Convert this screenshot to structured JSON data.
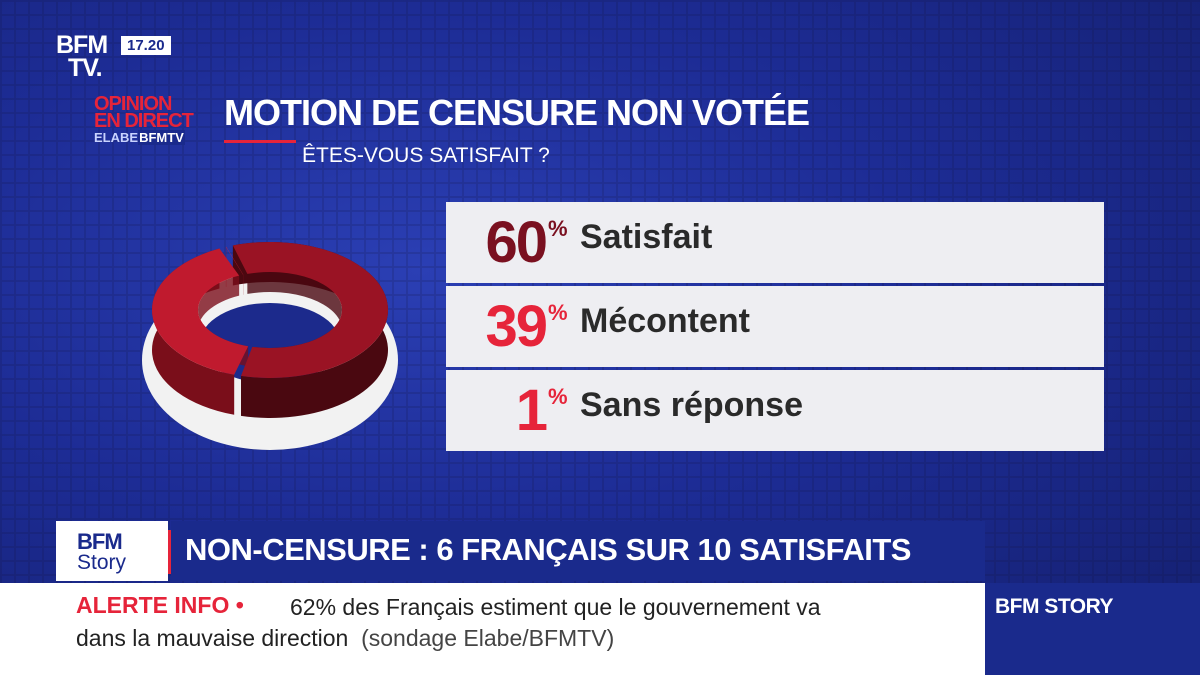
{
  "channel": {
    "logo_line1": "BFM",
    "logo_line2": "TV.",
    "time": "17.20"
  },
  "brand": {
    "opinion_line1": "OPINION",
    "opinion_line2": "EN DIRECT",
    "partner_a": "ELABE",
    "partner_b": "BFMTV"
  },
  "header": {
    "title": "MOTION DE CENSURE NON VOTÉE",
    "subtitle": "ÊTES-VOUS SATISFAIT ?"
  },
  "colors": {
    "satisfait": "#7a1020",
    "mecontent": "#e6243a",
    "sans_reponse": "#e6243a",
    "brand_blue": "#1a2a8c",
    "ring_base": "#f2f2f2"
  },
  "chart_data": {
    "type": "pie",
    "title": "MOTION DE CENSURE NON VOTÉE",
    "subtitle": "ÊTES-VOUS SATISFAIT ?",
    "unit": "%",
    "slices": [
      {
        "label": "Satisfait",
        "value": 60,
        "value_text": "60"
      },
      {
        "label": "Mécontent",
        "value": 39,
        "value_text": "39"
      },
      {
        "label": "Sans réponse",
        "value": 1,
        "value_text": "1"
      }
    ]
  },
  "banner": {
    "logo_line1": "BFM",
    "logo_line2": "Story",
    "headline": "NON-CENSURE : 6 FRANÇAIS SUR 10 SATISFAITS"
  },
  "ticker": {
    "alert_label": "ALERTE INFO •",
    "line1": "62% des Français estiment que le gouvernement va",
    "line2": "dans la mauvaise direction",
    "source": "(sondage Elabe/BFMTV)"
  },
  "show": {
    "name": "BFM STORY"
  }
}
